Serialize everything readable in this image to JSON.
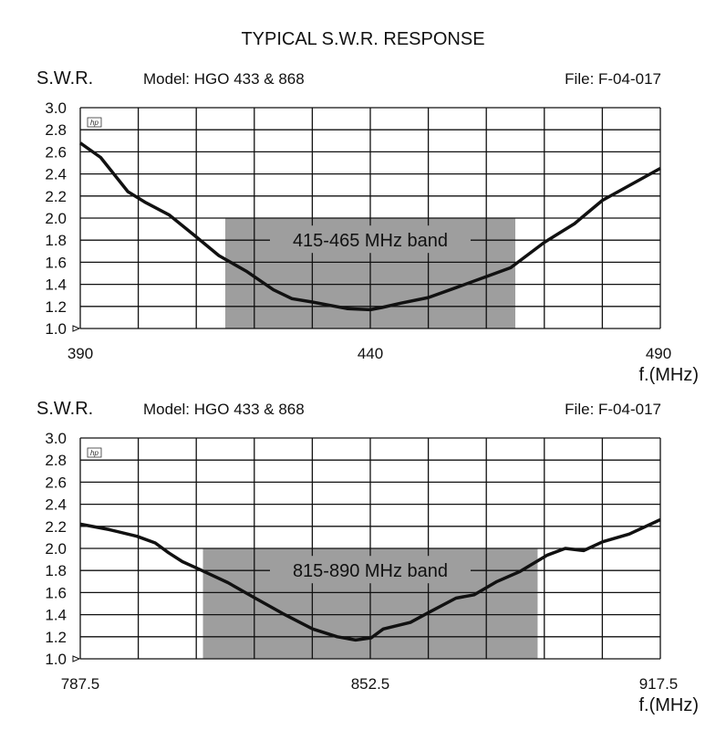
{
  "title": "TYPICAL S.W.R. RESPONSE",
  "colors": {
    "band": "#9e9e9e",
    "curve": "#111111",
    "grid": "#111111"
  },
  "logo_text": "hp",
  "chart_data": [
    {
      "type": "line",
      "ylabel": "S.W.R.",
      "model": "Model: HGO 433 & 868",
      "file": "File:  F-04-017",
      "xlabel": "f.(MHz)",
      "xlim": [
        390,
        490
      ],
      "ylim": [
        1.0,
        3.0
      ],
      "grid": true,
      "x_columns": 10,
      "yticks": [
        "1.0",
        "1.2",
        "1.4",
        "1.6",
        "1.8",
        "2.0",
        "2.2",
        "2.4",
        "2.6",
        "2.8",
        "3.0"
      ],
      "xticks": [
        {
          "value": 390,
          "label": "390"
        },
        {
          "value": 440,
          "label": "440"
        },
        {
          "value": 490,
          "label": "490"
        }
      ],
      "band": {
        "label": "415-465 MHz band",
        "from": 415,
        "to": 465,
        "swr_max": 2.0
      },
      "x": [
        390,
        393.5,
        398.2,
        401.3,
        405.3,
        410,
        413.9,
        418.6,
        423.3,
        426.5,
        430,
        436,
        440,
        442,
        445.3,
        450,
        454.8,
        460,
        464.2,
        470,
        475.2,
        480,
        486.2,
        490
      ],
      "y": [
        2.68,
        2.55,
        2.24,
        2.14,
        2.03,
        1.83,
        1.66,
        1.52,
        1.35,
        1.27,
        1.24,
        1.18,
        1.17,
        1.19,
        1.23,
        1.28,
        1.37,
        1.47,
        1.55,
        1.78,
        1.95,
        2.16,
        2.34,
        2.45
      ]
    },
    {
      "type": "line",
      "ylabel": "S.W.R.",
      "model": "Model: HGO 433 & 868",
      "file": "File:  F-04-017",
      "xlabel": "f.(MHz)",
      "xlim": [
        787.5,
        917.5
      ],
      "ylim": [
        1.0,
        3.0
      ],
      "grid": true,
      "x_columns": 10,
      "yticks": [
        "1.0",
        "1.2",
        "1.4",
        "1.6",
        "1.8",
        "2.0",
        "2.2",
        "2.4",
        "2.6",
        "2.8",
        "3.0"
      ],
      "xticks": [
        {
          "value": 787.5,
          "label": "787.5"
        },
        {
          "value": 852.5,
          "label": "852.5"
        },
        {
          "value": 917.5,
          "label": "917.5"
        }
      ],
      "band": {
        "label": "815-890 MHz band",
        "from": 815,
        "to": 890,
        "swr_max": 2.0
      },
      "x": [
        787.5,
        794,
        800.2,
        804.3,
        807.3,
        810.4,
        813.7,
        820.6,
        826.7,
        832.9,
        839.6,
        845.1,
        849.2,
        852.7,
        855.4,
        861.5,
        865.6,
        871.7,
        875.8,
        880.9,
        886,
        892.2,
        896.2,
        900.3,
        904.6,
        910.5,
        917.5
      ],
      "y": [
        2.22,
        2.17,
        2.11,
        2.05,
        1.96,
        1.88,
        1.82,
        1.69,
        1.55,
        1.41,
        1.27,
        1.2,
        1.17,
        1.19,
        1.27,
        1.33,
        1.42,
        1.55,
        1.58,
        1.7,
        1.79,
        1.94,
        2.0,
        1.98,
        2.06,
        2.13,
        2.26
      ]
    }
  ]
}
